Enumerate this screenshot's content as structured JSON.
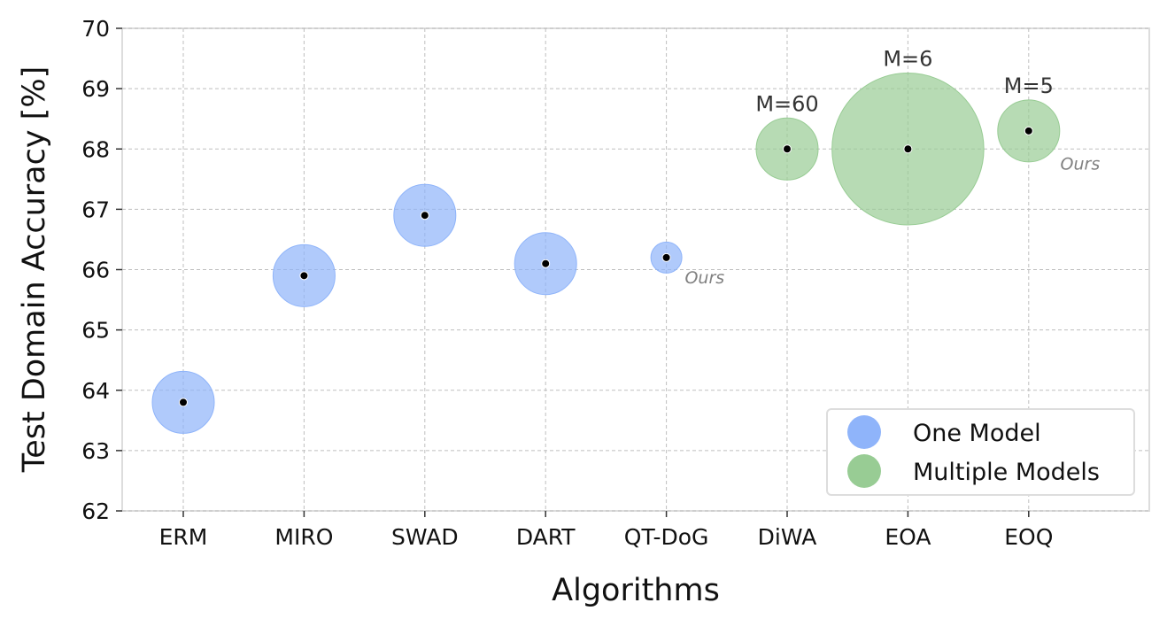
{
  "chart_data": {
    "type": "scatter",
    "xlabel": "Algorithms",
    "ylabel": "Test Domain Accuracy [%]",
    "ylim": [
      62,
      70
    ],
    "y_ticks": [
      "62",
      "63",
      "64",
      "65",
      "66",
      "67",
      "68",
      "69",
      "70"
    ],
    "categories": [
      "ERM",
      "MIRO",
      "SWAD",
      "DART",
      "QT-DoG",
      "DiWA",
      "EOA",
      "EOQ"
    ],
    "grid": true,
    "legend_position": "lower-right",
    "colors": {
      "one_model": "#8fb4fa",
      "multiple_models": "#98cc94"
    },
    "series": [
      {
        "name": "One Model",
        "color_key": "one_model",
        "points": [
          {
            "x": "ERM",
            "y": 63.8,
            "relative_size": 1.0
          },
          {
            "x": "MIRO",
            "y": 65.9,
            "relative_size": 1.0
          },
          {
            "x": "SWAD",
            "y": 66.9,
            "relative_size": 1.0
          },
          {
            "x": "DART",
            "y": 66.1,
            "relative_size": 1.0
          },
          {
            "x": "QT-DoG",
            "y": 66.2,
            "relative_size": 0.25,
            "note": "Ours"
          }
        ]
      },
      {
        "name": "Multiple Models",
        "color_key": "multiple_models",
        "points": [
          {
            "x": "DiWA",
            "y": 68.0,
            "relative_size": 1.0,
            "label": "M=60"
          },
          {
            "x": "EOA",
            "y": 68.0,
            "relative_size": 6.0,
            "label": "M=6"
          },
          {
            "x": "EOQ",
            "y": 68.3,
            "relative_size": 1.0,
            "label": "M=5",
            "note": "Ours"
          }
        ]
      }
    ]
  }
}
